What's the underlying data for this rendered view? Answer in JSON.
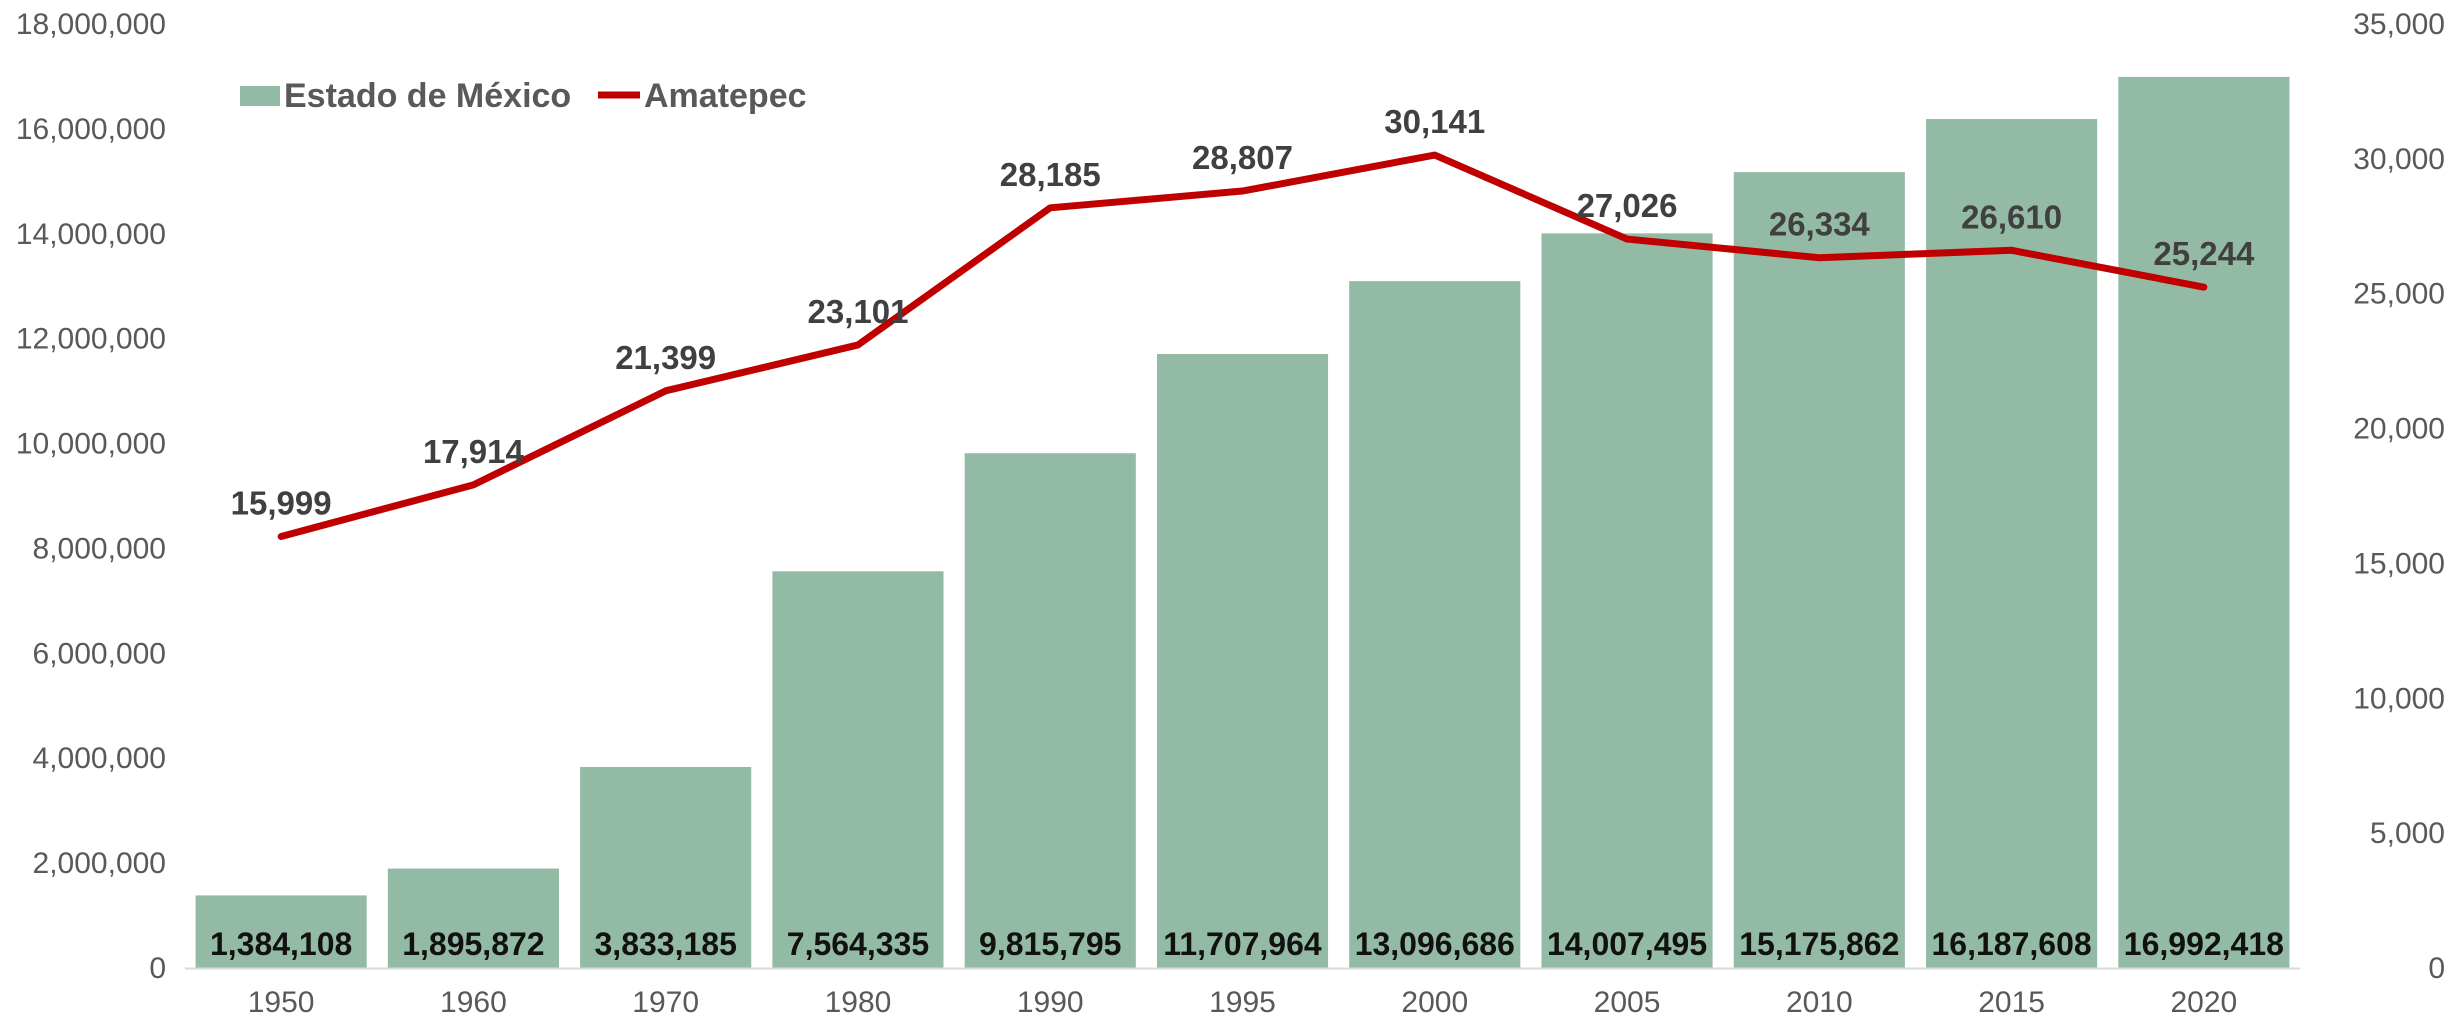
{
  "chart_data": {
    "type": "bar",
    "categories": [
      "1950",
      "1960",
      "1970",
      "1980",
      "1990",
      "1995",
      "2000",
      "2005",
      "2010",
      "2015",
      "2020"
    ],
    "series": [
      {
        "name": "Estado de México",
        "kind": "bar",
        "axis": "left",
        "color": "#93BAA4",
        "values": [
          1384108,
          1895872,
          3833185,
          7564335,
          9815795,
          11707964,
          13096686,
          14007495,
          15175862,
          16187608,
          16992418
        ],
        "labels": [
          "1,384,108",
          "1,895,872",
          "3,833,185",
          "7,564,335",
          "9,815,795",
          "11,707,964",
          "13,096,686",
          "14,007,495",
          "15,175,862",
          "16,187,608",
          "16,992,418"
        ]
      },
      {
        "name": "Amatepec",
        "kind": "line",
        "axis": "right",
        "color": "#C00000",
        "values": [
          15999,
          17914,
          21399,
          23101,
          28185,
          28807,
          30141,
          27026,
          26334,
          26610,
          25244
        ],
        "labels": [
          "15,999",
          "17,914",
          "21,399",
          "23,101",
          "28,185",
          "28,807",
          "30,141",
          "27,026",
          "26,334",
          "26,610",
          "25,244"
        ]
      }
    ],
    "y_left": {
      "ylim": [
        0,
        18000000
      ],
      "ticks": [
        0,
        2000000,
        4000000,
        6000000,
        8000000,
        10000000,
        12000000,
        14000000,
        16000000,
        18000000
      ],
      "tick_labels": [
        "0",
        "2,000,000",
        "4,000,000",
        "6,000,000",
        "8,000,000",
        "10,000,000",
        "12,000,000",
        "14,000,000",
        "16,000,000",
        "18,000,000"
      ]
    },
    "y_right": {
      "ylim": [
        0,
        35000
      ],
      "ticks": [
        0,
        5000,
        10000,
        15000,
        20000,
        25000,
        30000,
        35000
      ],
      "tick_labels": [
        "0",
        "5,000",
        "10,000",
        "15,000",
        "20,000",
        "25,000",
        "30,000",
        "35,000"
      ]
    },
    "legend": {
      "position": "top-left",
      "entries": [
        "Estado de México",
        "Amatepec"
      ]
    },
    "grid": false
  }
}
